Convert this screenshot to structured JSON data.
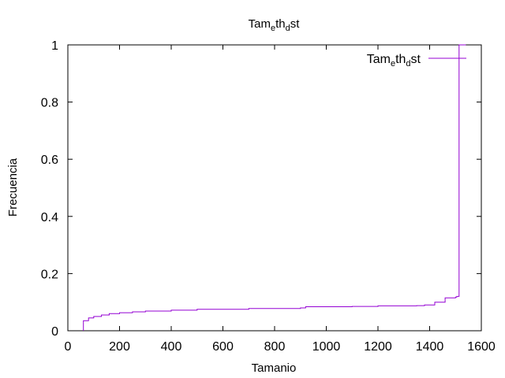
{
  "chart_data": {
    "type": "line",
    "title": "Tam_eth_dst",
    "xlabel": "Tamanio",
    "ylabel": "Frecuencia",
    "xlim": [
      0,
      1600
    ],
    "ylim": [
      0,
      1
    ],
    "xticks": [
      0,
      200,
      400,
      600,
      800,
      1000,
      1200,
      1400,
      1600
    ],
    "yticks": [
      0,
      0.2,
      0.4,
      0.6,
      0.8,
      1
    ],
    "ytick_labels": [
      "0",
      "0.2",
      "0.4",
      "0.6",
      "0.8",
      "1"
    ],
    "grid": false,
    "legend_position": "top-right",
    "series": [
      {
        "name": "Tam_eth_dst",
        "color": "#9400d3",
        "step": true,
        "x": [
          60,
          60,
          74,
          80,
          100,
          130,
          160,
          200,
          250,
          300,
          400,
          500,
          700,
          900,
          920,
          1100,
          1200,
          1350,
          1380,
          1420,
          1460,
          1500,
          1505,
          1510,
          1514,
          1514,
          1540
        ],
        "y": [
          0,
          0.035,
          0.035,
          0.045,
          0.05,
          0.055,
          0.06,
          0.063,
          0.066,
          0.069,
          0.072,
          0.075,
          0.078,
          0.08,
          0.084,
          0.085,
          0.087,
          0.088,
          0.09,
          0.1,
          0.115,
          0.118,
          0.12,
          0.12,
          0.12,
          1.0,
          1.0
        ]
      }
    ]
  }
}
